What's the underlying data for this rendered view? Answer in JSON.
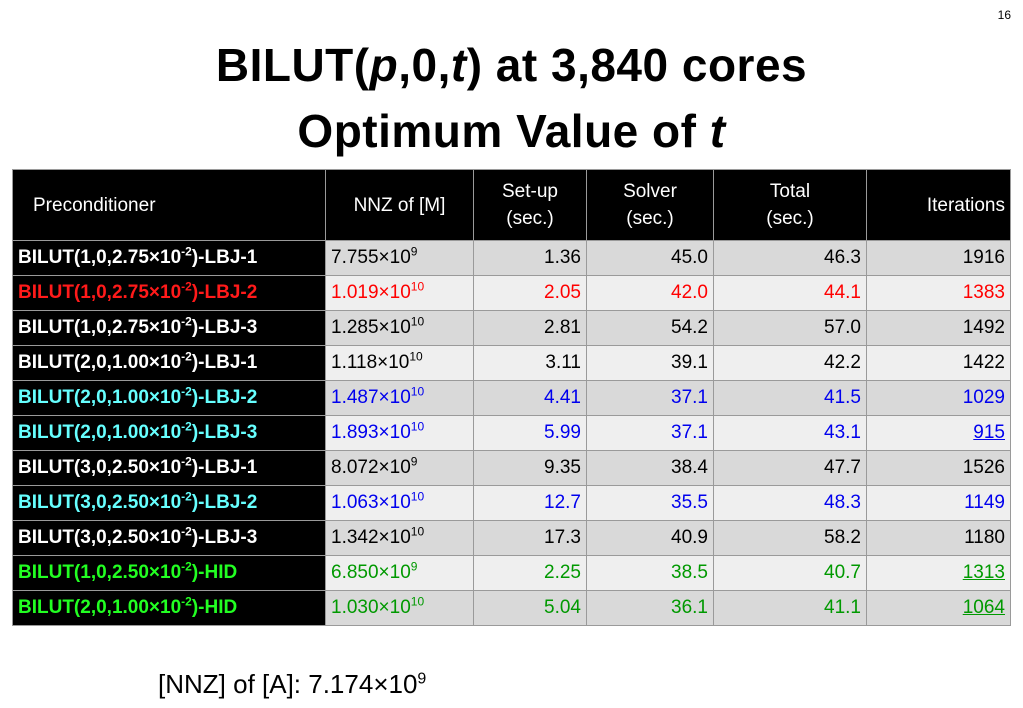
{
  "slide": {
    "page_number": "16",
    "title_parts": [
      "BILUT(",
      "p",
      ",0,",
      "t",
      ") at 3,840 cores"
    ],
    "subtitle_parts": [
      "Optimum Value of ",
      "t"
    ]
  },
  "table": {
    "headers": [
      "Preconditioner",
      "NNZ of [M]",
      "Set-up (sec.)",
      "Solver (sec.)",
      "Total (sec.)",
      "Iterations"
    ],
    "rows": [
      {
        "pc_pre": "BILUT(1,0,2.75×10",
        "pc_exp": "-2",
        "pc_post": ")-LBJ-1",
        "nnz_base": "7.755×10",
        "nnz_exp": "9",
        "setup": "1.36",
        "solver": "45.0",
        "total": "46.3",
        "iterations": "1916",
        "color": "black",
        "underline": false
      },
      {
        "pc_pre": "BILUT(1,0,2.75×10",
        "pc_exp": "-2",
        "pc_post": ")-LBJ-2",
        "nnz_base": "1.019×10",
        "nnz_exp": "10",
        "setup": "2.05",
        "solver": "42.0",
        "total": "44.1",
        "iterations": "1383",
        "color": "red",
        "underline": false
      },
      {
        "pc_pre": "BILUT(1,0,2.75×10",
        "pc_exp": "-2",
        "pc_post": ")-LBJ-3",
        "nnz_base": "1.285×10",
        "nnz_exp": "10",
        "setup": "2.81",
        "solver": "54.2",
        "total": "57.0",
        "iterations": "1492",
        "color": "black",
        "underline": false
      },
      {
        "pc_pre": "BILUT(2,0,1.00×10",
        "pc_exp": "-2",
        "pc_post": ")-LBJ-1",
        "nnz_base": "1.118×10",
        "nnz_exp": "10",
        "setup": "3.11",
        "solver": "39.1",
        "total": "42.2",
        "iterations": "1422",
        "color": "black",
        "underline": false
      },
      {
        "pc_pre": "BILUT(2,0,1.00×10",
        "pc_exp": "-2",
        "pc_post": ")-LBJ-2",
        "nnz_base": "1.487×10",
        "nnz_exp": "10",
        "setup": "4.41",
        "solver": "37.1",
        "total": "41.5",
        "iterations": "1029",
        "color": "blue",
        "underline": false
      },
      {
        "pc_pre": "BILUT(2,0,1.00×10",
        "pc_exp": "-2",
        "pc_post": ")-LBJ-3",
        "nnz_base": "1.893×10",
        "nnz_exp": "10",
        "setup": "5.99",
        "solver": "37.1",
        "total": "43.1",
        "iterations": "915",
        "color": "blue",
        "underline": true
      },
      {
        "pc_pre": "BILUT(3,0,2.50×10",
        "pc_exp": "-2",
        "pc_post": ")-LBJ-1",
        "nnz_base": "8.072×10",
        "nnz_exp": "9",
        "setup": "9.35",
        "solver": "38.4",
        "total": "47.7",
        "iterations": "1526",
        "color": "black",
        "underline": false
      },
      {
        "pc_pre": "BILUT(3,0,2.50×10",
        "pc_exp": "-2",
        "pc_post": ")-LBJ-2",
        "nnz_base": "1.063×10",
        "nnz_exp": "10",
        "setup": "12.7",
        "solver": "35.5",
        "total": "48.3",
        "iterations": "1149",
        "color": "blue",
        "underline": false
      },
      {
        "pc_pre": "BILUT(3,0,2.50×10",
        "pc_exp": "-2",
        "pc_post": ")-LBJ-3",
        "nnz_base": "1.342×10",
        "nnz_exp": "10",
        "setup": "17.3",
        "solver": "40.9",
        "total": "58.2",
        "iterations": "1180",
        "color": "black",
        "underline": false
      },
      {
        "pc_pre": "BILUT(1,0,2.50×10",
        "pc_exp": "-2",
        "pc_post": ")-HID",
        "nnz_base": "6.850×10",
        "nnz_exp": "9",
        "setup": "2.25",
        "solver": "38.5",
        "total": "40.7",
        "iterations": "1313",
        "color": "green",
        "underline": true
      },
      {
        "pc_pre": "BILUT(2,0,1.00×10",
        "pc_exp": "-2",
        "pc_post": ")-HID",
        "nnz_base": "1.030×10",
        "nnz_exp": "10",
        "setup": "5.04",
        "solver": "36.1",
        "total": "41.1",
        "iterations": "1064",
        "color": "green",
        "underline": true
      }
    ]
  },
  "footer": {
    "label": "[NNZ] of [A]:  7.174×10",
    "exp": "9"
  },
  "colors": {
    "red": "#ff0000",
    "blue": "#0000ee",
    "green": "#009900",
    "cyan_label": "#66ffff",
    "header_bg": "#000000"
  }
}
